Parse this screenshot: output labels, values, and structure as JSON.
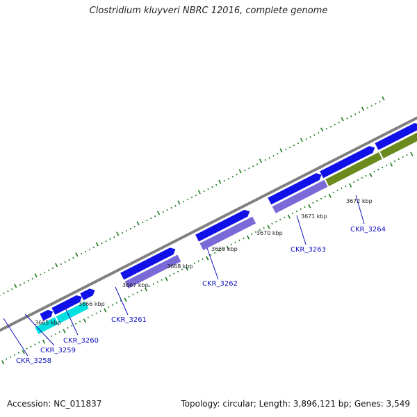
{
  "title": "Clostridium kluyveri NBRC 12016, complete genome",
  "footer": {
    "accession": "Accession: NC_011837",
    "summary": "Topology: circular; Length: 3,896,121 bp; Genes: 3,549"
  },
  "colors": {
    "backbone": "#808080",
    "forward_cds": "#1010e8",
    "rna_like": "#00e0e0",
    "cog_purple": "#7a6ad8",
    "cog_olive": "#6b8a1e",
    "tick": "#1a7a1a",
    "label": "#1010c0"
  },
  "scale_labels": [
    "3665 kbp",
    "3666 kbp",
    "3667 kbp",
    "3668 kbp",
    "3669 kbp",
    "3670 kbp",
    "3671 kbp",
    "3672 kbp"
  ],
  "genes": [
    {
      "locus_tag": "CKR_3258"
    },
    {
      "locus_tag": "CKR_3259"
    },
    {
      "locus_tag": "CKR_3260"
    },
    {
      "locus_tag": "CKR_3261"
    },
    {
      "locus_tag": "CKR_3262"
    },
    {
      "locus_tag": "CKR_3263"
    },
    {
      "locus_tag": "CKR_3264"
    }
  ]
}
